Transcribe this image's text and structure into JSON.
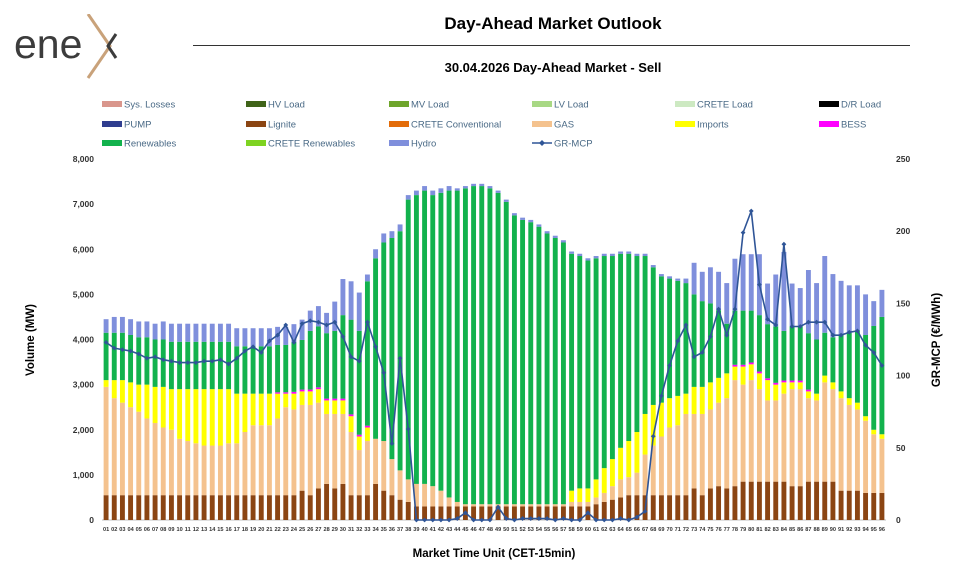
{
  "logo": {
    "text": "ene",
    "accent_color": "#c9a27a"
  },
  "header": {
    "title": "Day-Ahead Market Outlook",
    "subtitle": "30.04.2026  Day-Ahead Market - Sell"
  },
  "chart_data": {
    "type": "bar",
    "stacked": true,
    "title": "30.04.2026  Day-Ahead Market - Sell",
    "xlabel": "Market Time Unit (CET-15min)",
    "ylabel": "Volume (MW)",
    "y2label": "GR-MCP (€/MWh)",
    "ylim": [
      0,
      8000
    ],
    "y2lim": [
      0,
      250
    ],
    "yticks": [
      "0",
      "1,000",
      "2,000",
      "3,000",
      "4,000",
      "5,000",
      "6,000",
      "7,000",
      "8,000"
    ],
    "y2ticks": [
      "0",
      "50",
      "100",
      "150",
      "200",
      "250"
    ],
    "categories": [
      "01",
      "02",
      "03",
      "04",
      "05",
      "06",
      "07",
      "08",
      "09",
      "10",
      "11",
      "12",
      "13",
      "14",
      "15",
      "16",
      "17",
      "18",
      "19",
      "20",
      "21",
      "22",
      "23",
      "24",
      "25",
      "26",
      "27",
      "28",
      "29",
      "30",
      "31",
      "32",
      "33",
      "34",
      "35",
      "36",
      "37",
      "38",
      "39",
      "40",
      "41",
      "42",
      "43",
      "44",
      "45",
      "46",
      "47",
      "48",
      "49",
      "50",
      "51",
      "52",
      "53",
      "54",
      "55",
      "56",
      "57",
      "58",
      "59",
      "60",
      "61",
      "62",
      "63",
      "64",
      "65",
      "66",
      "67",
      "68",
      "69",
      "70",
      "71",
      "72",
      "73",
      "74",
      "75",
      "76",
      "77",
      "78",
      "79",
      "80",
      "81",
      "82",
      "83",
      "84",
      "85",
      "86",
      "87",
      "88",
      "89",
      "90",
      "91",
      "92",
      "93",
      "94",
      "95",
      "96"
    ],
    "legend": [
      {
        "name": "Sys. Losses",
        "color": "#d9968c"
      },
      {
        "name": "HV Load",
        "color": "#3f6318"
      },
      {
        "name": "MV Load",
        "color": "#6ea52b"
      },
      {
        "name": "LV Load",
        "color": "#a8d884"
      },
      {
        "name": "CRETE Load",
        "color": "#cde9c2"
      },
      {
        "name": "D/R Load",
        "color": "#000000"
      },
      {
        "name": "PUMP",
        "color": "#2f3d8f"
      },
      {
        "name": "Lignite",
        "color": "#8b4513"
      },
      {
        "name": "CRETE Conventional",
        "color": "#e36c09"
      },
      {
        "name": "GAS",
        "color": "#f4c28e"
      },
      {
        "name": "Imports",
        "color": "#ffff00"
      },
      {
        "name": "BESS",
        "color": "#ff00ff"
      },
      {
        "name": "Renewables",
        "color": "#12b24d"
      },
      {
        "name": "CRETE Renewables",
        "color": "#7ed321"
      },
      {
        "name": "Hydro",
        "color": "#7f8fdc"
      },
      {
        "name": "GR-MCP",
        "color": "#2f5597"
      }
    ],
    "series": [
      {
        "name": "Lignite",
        "color": "#8b4513",
        "values": [
          550,
          550,
          550,
          550,
          550,
          550,
          550,
          550,
          550,
          550,
          550,
          550,
          550,
          550,
          550,
          550,
          550,
          550,
          550,
          550,
          550,
          550,
          550,
          550,
          650,
          550,
          700,
          800,
          700,
          800,
          550,
          550,
          550,
          800,
          650,
          550,
          450,
          400,
          300,
          300,
          300,
          300,
          300,
          300,
          300,
          300,
          300,
          300,
          300,
          300,
          300,
          300,
          300,
          300,
          300,
          300,
          300,
          300,
          300,
          300,
          350,
          400,
          450,
          500,
          550,
          550,
          550,
          550,
          550,
          550,
          550,
          550,
          700,
          550,
          700,
          750,
          700,
          750,
          850,
          850,
          850,
          850,
          850,
          850,
          750,
          750,
          850,
          850,
          850,
          850,
          650,
          650,
          650,
          600,
          600,
          600
        ]
      },
      {
        "name": "GAS",
        "color": "#f4c28e",
        "values": [
          2400,
          2150,
          2050,
          1950,
          1850,
          1700,
          1600,
          1500,
          1450,
          1250,
          1200,
          1150,
          1100,
          1100,
          1100,
          1150,
          1150,
          1400,
          1550,
          1550,
          1550,
          1700,
          1950,
          1900,
          1900,
          2000,
          1900,
          1550,
          1650,
          1550,
          1400,
          1000,
          1200,
          1000,
          1100,
          800,
          650,
          500,
          500,
          500,
          450,
          350,
          200,
          100,
          50,
          50,
          50,
          50,
          50,
          50,
          50,
          50,
          50,
          50,
          50,
          50,
          50,
          100,
          100,
          100,
          150,
          200,
          300,
          400,
          400,
          500,
          900,
          1100,
          1300,
          1500,
          1550,
          1800,
          1650,
          1800,
          1750,
          1850,
          2000,
          2350,
          2150,
          2250,
          2050,
          1800,
          1800,
          1950,
          2150,
          2150,
          1850,
          1800,
          2200,
          2050,
          2050,
          1900,
          1800,
          1600,
          1300,
          1200
        ]
      },
      {
        "name": "Imports",
        "color": "#ffff00",
        "values": [
          150,
          400,
          500,
          550,
          600,
          750,
          800,
          900,
          900,
          1100,
          1150,
          1200,
          1250,
          1250,
          1250,
          1200,
          1100,
          850,
          700,
          700,
          700,
          550,
          300,
          350,
          300,
          300,
          300,
          300,
          300,
          300,
          350,
          300,
          300,
          0,
          0,
          0,
          0,
          0,
          0,
          0,
          0,
          0,
          0,
          0,
          0,
          0,
          0,
          0,
          0,
          0,
          0,
          0,
          0,
          0,
          0,
          0,
          0,
          250,
          300,
          300,
          400,
          550,
          600,
          700,
          800,
          900,
          900,
          900,
          750,
          650,
          650,
          450,
          600,
          600,
          600,
          550,
          550,
          300,
          400,
          350,
          350,
          450,
          350,
          250,
          150,
          150,
          150,
          150,
          150,
          150,
          150,
          150,
          150,
          100,
          100,
          100
        ]
      },
      {
        "name": "BESS",
        "color": "#ff00ff",
        "values": [
          0,
          0,
          0,
          0,
          0,
          0,
          0,
          0,
          0,
          0,
          0,
          0,
          0,
          0,
          0,
          0,
          0,
          0,
          0,
          0,
          0,
          30,
          30,
          40,
          40,
          40,
          40,
          40,
          40,
          40,
          40,
          40,
          40,
          0,
          0,
          0,
          0,
          0,
          0,
          0,
          0,
          0,
          0,
          0,
          0,
          0,
          0,
          0,
          0,
          0,
          0,
          0,
          0,
          0,
          0,
          0,
          0,
          0,
          0,
          0,
          0,
          0,
          0,
          0,
          0,
          0,
          0,
          0,
          0,
          0,
          0,
          0,
          0,
          0,
          0,
          0,
          0,
          40,
          40,
          40,
          40,
          40,
          40,
          40,
          40,
          40,
          40,
          0,
          0,
          0,
          0,
          0,
          0,
          0,
          0,
          0
        ]
      },
      {
        "name": "Renewables",
        "color": "#12b24d",
        "values": [
          1050,
          1050,
          1050,
          1050,
          1050,
          1050,
          1050,
          1050,
          1050,
          1050,
          1050,
          1050,
          1050,
          1050,
          1050,
          1050,
          1050,
          1050,
          1050,
          1050,
          1050,
          1050,
          1050,
          1100,
          1100,
          1300,
          1350,
          1450,
          1500,
          1850,
          2100,
          2300,
          3200,
          4000,
          4400,
          4900,
          5300,
          6200,
          6400,
          6500,
          6450,
          6600,
          6800,
          6900,
          7000,
          7050,
          7050,
          7000,
          6900,
          6700,
          6400,
          6300,
          6250,
          6150,
          6000,
          5900,
          5800,
          5250,
          5150,
          5050,
          4900,
          4700,
          4500,
          4300,
          4150,
          3900,
          3500,
          3050,
          2800,
          2650,
          2550,
          2450,
          2050,
          1900,
          1750,
          1500,
          1100,
          1200,
          1200,
          1150,
          1250,
          1200,
          1250,
          1100,
          1200,
          1200,
          1250,
          1200,
          950,
          1000,
          1250,
          1450,
          1600,
          1800,
          2300,
          2600
        ]
      },
      {
        "name": "Hydro",
        "color": "#7f8fdc",
        "values": [
          300,
          350,
          350,
          350,
          350,
          350,
          350,
          400,
          400,
          400,
          400,
          400,
          400,
          400,
          400,
          400,
          400,
          400,
          400,
          400,
          400,
          400,
          400,
          400,
          450,
          450,
          450,
          450,
          650,
          800,
          850,
          850,
          150,
          200,
          200,
          150,
          150,
          100,
          100,
          100,
          100,
          100,
          100,
          50,
          50,
          50,
          50,
          50,
          50,
          50,
          50,
          50,
          50,
          50,
          50,
          50,
          50,
          50,
          50,
          50,
          50,
          50,
          50,
          50,
          50,
          50,
          50,
          50,
          50,
          50,
          50,
          100,
          700,
          650,
          800,
          850,
          900,
          1150,
          1250,
          1250,
          1350,
          900,
          1150,
          1750,
          950,
          850,
          1400,
          1250,
          1700,
          1400,
          1200,
          1050,
          1000,
          900,
          550,
          600
        ]
      }
    ],
    "mcp": [
      123,
      119,
      118,
      117,
      115,
      112,
      113,
      111,
      110,
      109,
      109,
      109,
      110,
      110,
      111,
      108,
      112,
      117,
      120,
      116,
      124,
      128,
      135,
      123,
      136,
      138,
      137,
      135,
      137,
      127,
      113,
      110,
      137,
      120,
      102,
      53,
      112,
      63,
      0,
      0,
      0,
      0,
      0,
      1,
      5,
      0,
      0,
      0,
      9,
      1,
      0,
      1,
      1,
      1,
      1,
      0,
      1,
      0,
      0,
      5,
      0,
      0,
      0,
      1,
      0,
      2,
      6,
      58,
      86,
      107,
      124,
      135,
      113,
      116,
      127,
      146,
      128,
      146,
      199,
      214,
      163,
      139,
      135,
      191,
      134,
      134,
      137,
      137,
      137,
      128,
      128,
      130,
      131,
      121,
      116,
      107
    ]
  }
}
